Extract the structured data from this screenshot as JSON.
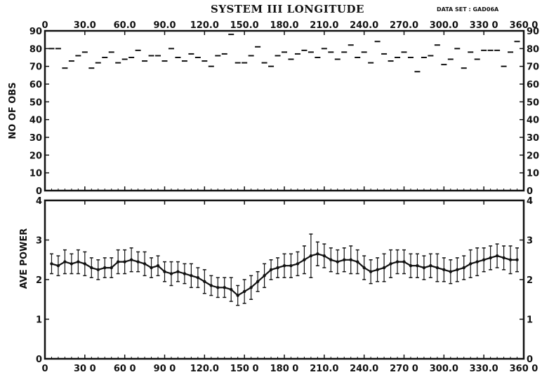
{
  "header": {
    "title": "SYSTEM III LONGITUDE",
    "data_set": "DATA SET : GAD06A"
  },
  "chart_data": [
    {
      "type": "scatter",
      "xlabel": "SYSTEM III LONGITUDE",
      "ylabel": "NO OF OBS",
      "xlim": [
        0,
        360
      ],
      "ylim": [
        0,
        90
      ],
      "x_ticks": [
        0,
        30,
        60,
        90,
        120,
        150,
        180,
        210,
        240,
        270,
        300,
        330,
        360
      ],
      "x_tick_labels": [
        "0",
        "30.0",
        "60.0",
        "90.0",
        "120.0",
        "150.0",
        "180.0",
        "210.0",
        "240.0",
        "270.0",
        "300.0",
        "330.0",
        "360.0"
      ],
      "x_tick_labels_display": [
        "0",
        "30.0",
        "60.0",
        "90.0",
        "120.0",
        "150.0",
        "180.0",
        "210.0",
        "240.0",
        "270.0",
        "300.0",
        "330 0",
        "360 0"
      ],
      "y_ticks": [
        0,
        10,
        20,
        30,
        40,
        50,
        60,
        70,
        80,
        90
      ],
      "y_tick_labels": [
        "0",
        "10",
        "20",
        "30",
        "40",
        "50",
        "60",
        "70",
        "80",
        "90"
      ],
      "series": [
        {
          "x": [
            5,
            10,
            15,
            20,
            25,
            30,
            35,
            40,
            45,
            50,
            55,
            60,
            65,
            70,
            75,
            80,
            85,
            90,
            95,
            100,
            105,
            110,
            115,
            120,
            125,
            130,
            135,
            140,
            145,
            150,
            155,
            160,
            165,
            170,
            175,
            180,
            185,
            190,
            195,
            200,
            205,
            210,
            215,
            220,
            225,
            230,
            235,
            240,
            245,
            250,
            255,
            260,
            265,
            270,
            275,
            280,
            285,
            290,
            295,
            300,
            305,
            310,
            315,
            320,
            325,
            330,
            335,
            340,
            345,
            350,
            355
          ],
          "values": [
            80,
            80,
            69,
            73,
            76,
            78,
            69,
            72,
            75,
            78,
            72,
            74,
            75,
            79,
            73,
            76,
            76,
            73,
            80,
            75,
            73,
            77,
            75,
            73,
            70,
            76,
            77,
            88,
            72,
            72,
            76,
            81,
            72,
            70,
            76,
            78,
            74,
            77,
            79,
            78,
            75,
            80,
            78,
            74,
            78,
            82,
            75,
            78,
            72,
            84,
            77,
            73,
            75,
            78,
            75,
            67,
            75,
            76,
            82,
            71,
            74,
            80,
            69,
            78,
            74,
            79,
            79,
            79,
            70,
            78,
            84
          ]
        }
      ]
    },
    {
      "type": "line",
      "xlabel": "",
      "ylabel": "AVE POWER",
      "xlim": [
        0,
        360
      ],
      "ylim": [
        0,
        4
      ],
      "x_ticks": [
        0,
        30,
        60,
        90,
        120,
        150,
        180,
        210,
        240,
        270,
        300,
        330,
        360
      ],
      "x_tick_labels": [
        "0",
        "30 0",
        "60 0",
        "90 0",
        "120.0",
        "150 0",
        "180 0",
        "210.0",
        "240.0",
        "270 0",
        "300.0",
        "330.0",
        "360 0"
      ],
      "y_ticks": [
        0,
        1,
        2,
        3,
        4
      ],
      "y_tick_labels": [
        "0",
        "1",
        "2",
        "3",
        "4"
      ],
      "series": [
        {
          "x": [
            5,
            10,
            15,
            20,
            25,
            30,
            35,
            40,
            45,
            50,
            55,
            60,
            65,
            70,
            75,
            80,
            85,
            90,
            95,
            100,
            105,
            110,
            115,
            120,
            125,
            130,
            135,
            140,
            145,
            150,
            155,
            160,
            165,
            170,
            175,
            180,
            185,
            190,
            195,
            200,
            205,
            210,
            215,
            220,
            225,
            230,
            235,
            240,
            245,
            250,
            255,
            260,
            265,
            270,
            275,
            280,
            285,
            290,
            295,
            300,
            305,
            310,
            315,
            320,
            325,
            330,
            335,
            340,
            345,
            350,
            355
          ],
          "values": [
            2.4,
            2.35,
            2.45,
            2.4,
            2.45,
            2.4,
            2.3,
            2.25,
            2.3,
            2.3,
            2.45,
            2.45,
            2.5,
            2.45,
            2.4,
            2.3,
            2.35,
            2.2,
            2.15,
            2.2,
            2.15,
            2.1,
            2.05,
            1.95,
            1.85,
            1.8,
            1.8,
            1.75,
            1.6,
            1.7,
            1.8,
            1.95,
            2.1,
            2.25,
            2.3,
            2.35,
            2.35,
            2.4,
            2.5,
            2.6,
            2.65,
            2.6,
            2.5,
            2.45,
            2.5,
            2.5,
            2.45,
            2.3,
            2.2,
            2.25,
            2.3,
            2.4,
            2.45,
            2.45,
            2.35,
            2.35,
            2.3,
            2.35,
            2.3,
            2.25,
            2.2,
            2.25,
            2.3,
            2.4,
            2.45,
            2.5,
            2.55,
            2.6,
            2.55,
            2.5,
            2.5
          ],
          "errors": [
            0.25,
            0.25,
            0.3,
            0.25,
            0.3,
            0.3,
            0.25,
            0.25,
            0.25,
            0.25,
            0.3,
            0.3,
            0.3,
            0.25,
            0.3,
            0.25,
            0.25,
            0.25,
            0.3,
            0.25,
            0.25,
            0.3,
            0.25,
            0.3,
            0.25,
            0.25,
            0.25,
            0.3,
            0.25,
            0.3,
            0.3,
            0.25,
            0.3,
            0.25,
            0.25,
            0.3,
            0.3,
            0.3,
            0.35,
            0.55,
            0.3,
            0.3,
            0.3,
            0.3,
            0.3,
            0.35,
            0.3,
            0.3,
            0.3,
            0.3,
            0.35,
            0.35,
            0.3,
            0.3,
            0.3,
            0.3,
            0.3,
            0.3,
            0.35,
            0.3,
            0.3,
            0.3,
            0.3,
            0.35,
            0.35,
            0.3,
            0.3,
            0.3,
            0.3,
            0.35,
            0.3
          ]
        }
      ]
    }
  ]
}
